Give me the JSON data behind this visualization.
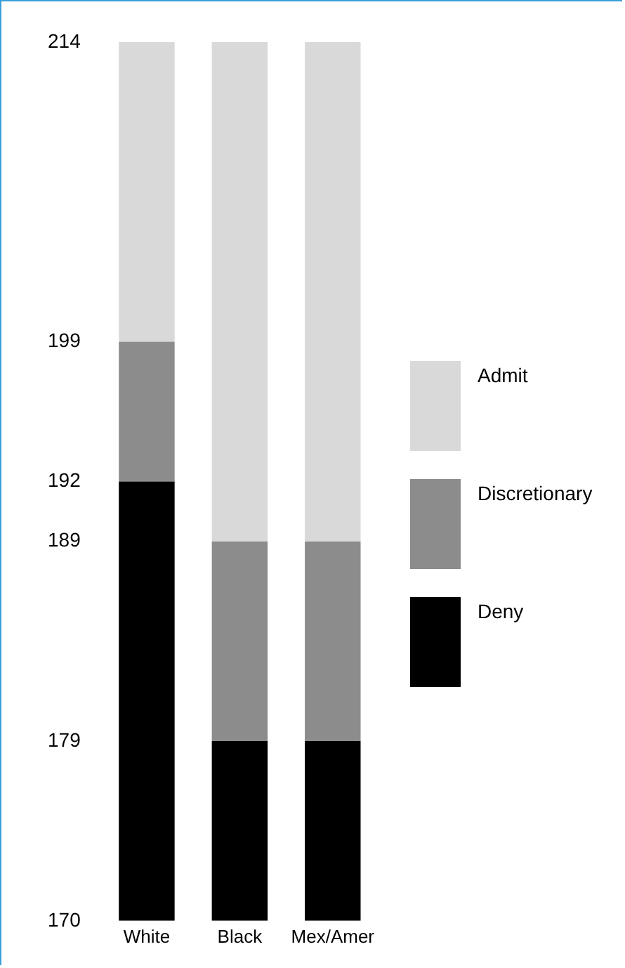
{
  "chart_data": {
    "type": "bar",
    "stacked": true,
    "categories": [
      "White",
      "Black",
      "Mex/Amer"
    ],
    "series": [
      {
        "name": "Deny",
        "color": "#000000",
        "base": [
          170,
          170,
          170
        ],
        "values": [
          22,
          9,
          9
        ]
      },
      {
        "name": "Discretionary",
        "color": "#8c8c8c",
        "base": [
          192,
          179,
          179
        ],
        "values": [
          7,
          10,
          10
        ]
      },
      {
        "name": "Admit",
        "color": "#d9d9d9",
        "base": [
          199,
          189,
          189
        ],
        "values": [
          15,
          25,
          25
        ]
      }
    ],
    "ylim": [
      170,
      214
    ],
    "yticks": [
      170,
      179,
      189,
      192,
      199,
      214
    ],
    "grid": false,
    "legend": "right"
  }
}
